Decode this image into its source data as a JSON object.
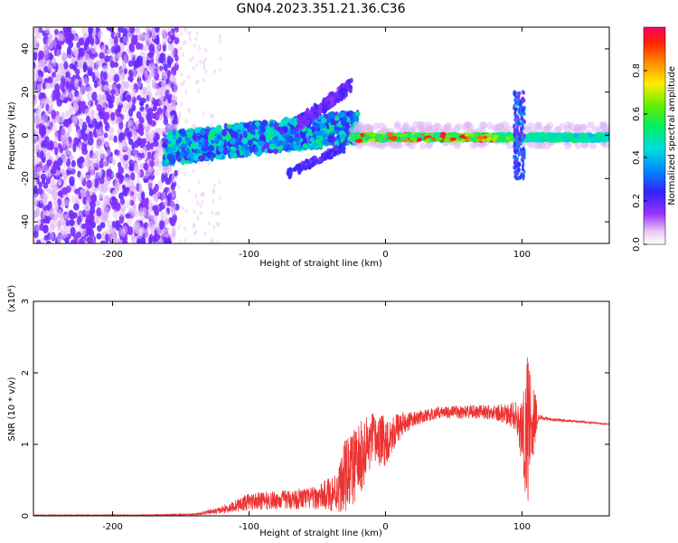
{
  "chart_data": [
    {
      "type": "heatmap",
      "title": "GN04.2023.351.21.36.C36",
      "xlabel": "Height of straight line (km)",
      "ylabel": "Frequency (Hz)",
      "xlim": [
        -258,
        164
      ],
      "ylim": [
        -50,
        50
      ],
      "xticks": [
        -200,
        -100,
        0,
        100
      ],
      "yticks": [
        -40,
        -20,
        0,
        20,
        40
      ],
      "colorbar": {
        "label": "Normalized spectral amplitude",
        "range": [
          0,
          1
        ],
        "ticks": [
          "0.0",
          "0.2",
          "0.4",
          "0.6",
          "0.8"
        ]
      },
      "grid": false
    },
    {
      "type": "line",
      "xlabel": "Height of straight line (km)",
      "ylabel": "SNR (10 * v/v)",
      "yscale_label": "(x10⁴)",
      "xlim": [
        -258,
        164
      ],
      "ylim": [
        0,
        3
      ],
      "xticks": [
        -200,
        -100,
        0,
        100
      ],
      "yticks": [
        0,
        1,
        2,
        3
      ],
      "color": "#ee3333",
      "grid": false,
      "envelope": {
        "x": [
          -258,
          -180,
          -140,
          -120,
          -100,
          -80,
          -50,
          -35,
          -30,
          -20,
          -10,
          0,
          10,
          20,
          40,
          60,
          80,
          95,
          100,
          105,
          108,
          112,
          120,
          140,
          164
        ],
        "mid": [
          0.01,
          0.01,
          0.02,
          0.08,
          0.2,
          0.22,
          0.25,
          0.35,
          0.55,
          0.75,
          1.05,
          1.05,
          1.25,
          1.35,
          1.45,
          1.45,
          1.45,
          1.4,
          1.15,
          1.25,
          1.4,
          1.38,
          1.35,
          1.32,
          1.28
        ],
        "amp": [
          0.005,
          0.005,
          0.01,
          0.05,
          0.12,
          0.13,
          0.16,
          0.3,
          0.5,
          0.55,
          0.4,
          0.35,
          0.2,
          0.1,
          0.08,
          0.1,
          0.1,
          0.2,
          0.6,
          1.2,
          0.6,
          0.04,
          0.02,
          0.015,
          0.01
        ]
      }
    }
  ]
}
